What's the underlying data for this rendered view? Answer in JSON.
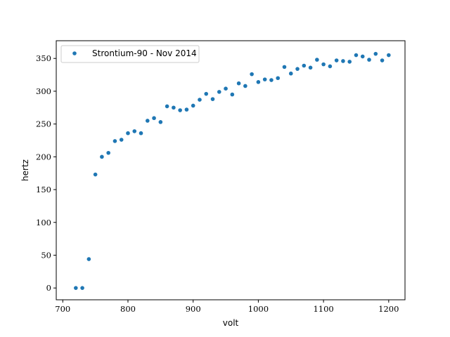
{
  "chart_data": {
    "type": "scatter",
    "title": "",
    "xlabel": "volt",
    "ylabel": "hertz",
    "xlim": [
      690,
      1225
    ],
    "ylim": [
      -18,
      377
    ],
    "xticks": [
      700,
      800,
      900,
      1000,
      1100,
      1200
    ],
    "yticks": [
      0,
      50,
      100,
      150,
      200,
      250,
      300,
      350
    ],
    "grid": false,
    "legend": {
      "placement": "top-left"
    },
    "series": [
      {
        "name": "Strontium-90 - Nov 2014",
        "color": "#1f77b4",
        "marker": "circle",
        "x": [
          720,
          730,
          740,
          750,
          760,
          770,
          780,
          790,
          800,
          810,
          820,
          830,
          840,
          850,
          860,
          870,
          880,
          890,
          900,
          910,
          920,
          930,
          940,
          950,
          960,
          970,
          980,
          990,
          1000,
          1010,
          1020,
          1030,
          1040,
          1050,
          1060,
          1070,
          1080,
          1090,
          1100,
          1110,
          1120,
          1130,
          1140,
          1150,
          1160,
          1170,
          1180,
          1190,
          1200
        ],
        "y": [
          0,
          0,
          44,
          173,
          200,
          206,
          224,
          226,
          236,
          239,
          236,
          255,
          259,
          253,
          277,
          275,
          271,
          272,
          278,
          287,
          296,
          288,
          299,
          304,
          295,
          312,
          308,
          326,
          314,
          318,
          317,
          320,
          337,
          327,
          334,
          339,
          336,
          348,
          341,
          338,
          347,
          346,
          345,
          355,
          353,
          348,
          357,
          347,
          355
        ]
      }
    ]
  }
}
